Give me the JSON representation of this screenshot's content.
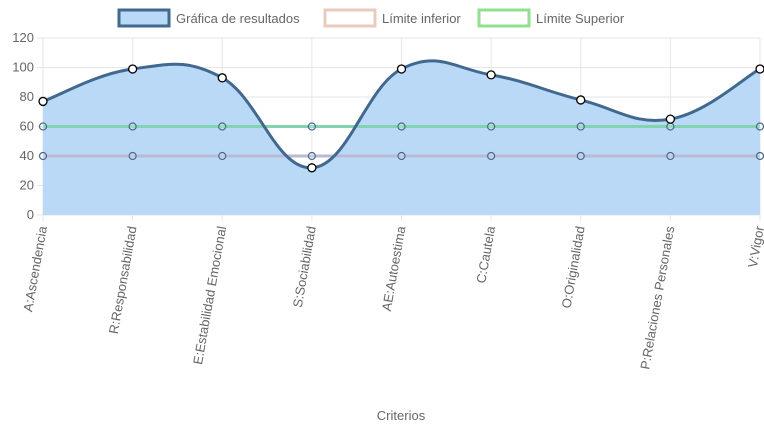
{
  "chart_data": {
    "type": "line",
    "categories": [
      "A:Ascendencia",
      "R:Responsabilidad",
      "E:Estabilidad Emocional",
      "S:Sociabilidad",
      "AE:Autoestima",
      "C:Cautela",
      "O:Originalidad",
      "P:Relaciones Personales",
      "V:Vigor"
    ],
    "series": [
      {
        "name": "Gráfica de resultados",
        "values": [
          77,
          99,
          93,
          32,
          99,
          95,
          78,
          65,
          99
        ],
        "color": "#41698f",
        "fill": "#b9d9f7"
      },
      {
        "name": "Límite inferior",
        "values": [
          40,
          40,
          40,
          40,
          40,
          40,
          40,
          40,
          40
        ],
        "color": "#e8cbbf"
      },
      {
        "name": "Límite Superior",
        "values": [
          60,
          60,
          60,
          60,
          60,
          60,
          60,
          60,
          60
        ],
        "color": "#90e090"
      }
    ],
    "xlabel": "Criterios",
    "ylabel": "",
    "ylim": [
      0,
      120
    ],
    "yticks": [
      0,
      20,
      40,
      60,
      80,
      100,
      120
    ],
    "grid": true,
    "legend_position": "top"
  }
}
